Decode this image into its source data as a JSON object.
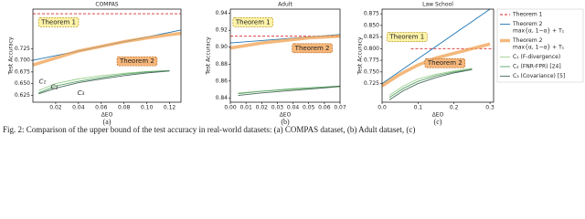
{
  "charts": [
    {
      "type": "line",
      "title": "COMPAS",
      "xlabel": "ΔEO",
      "ylabel": "Test Accuracy",
      "panel": "(a)",
      "xlim": [
        0,
        0.13
      ],
      "ylim": [
        0.61,
        0.81
      ],
      "xticks": [
        0.02,
        0.04,
        0.06,
        0.08,
        {
          "value": 0.1,
          "label": "0.10"
        },
        0.12
      ],
      "yticks": [
        0.625,
        {
          "value": 0.65,
          "label": "0.650"
        },
        0.675,
        {
          "value": 0.7,
          "label": "0.700"
        },
        0.725
      ],
      "series": [
        {
          "style": "dashed",
          "color": "#d62728",
          "x": [
            0,
            0.13
          ],
          "values": [
            0.8,
            0.8
          ]
        },
        {
          "style": "solid",
          "color": "#1f77b4",
          "x": [
            0,
            0.13
          ],
          "values": [
            0.7,
            0.765
          ]
        },
        {
          "style": "band",
          "color": "#f0a050",
          "x": [
            0,
            0.02,
            0.04,
            0.06,
            0.08,
            0.1,
            0.12,
            0.13
          ],
          "values": [
            0.69,
            0.705,
            0.72,
            0.73,
            0.74,
            0.748,
            0.755,
            0.758
          ]
        },
        {
          "style": "solid",
          "color": "#9ccf8c",
          "x": [
            0.005,
            0.02,
            0.04,
            0.06,
            0.08,
            0.1,
            0.12
          ],
          "values": [
            0.635,
            0.65,
            0.66,
            0.667,
            0.672,
            0.676,
            0.678
          ]
        },
        {
          "style": "solid",
          "color": "#5aa46a",
          "x": [
            0.005,
            0.02,
            0.04,
            0.06,
            0.08,
            0.1,
            0.12
          ],
          "values": [
            0.63,
            0.645,
            0.655,
            0.663,
            0.67,
            0.675,
            0.678
          ]
        },
        {
          "style": "solid",
          "color": "#4a6a5a",
          "x": [
            0.005,
            0.02,
            0.04,
            0.06,
            0.08,
            0.1,
            0.12
          ],
          "values": [
            0.628,
            0.64,
            0.652,
            0.66,
            0.667,
            0.673,
            0.677
          ]
        }
      ],
      "annotations": [
        {
          "text": "Theorem 1",
          "style": "box-yellow"
        },
        {
          "text": "Theorem 2",
          "style": "box-orange"
        },
        {
          "text": "C₁",
          "style": "plain"
        },
        {
          "text": "C₂",
          "style": "plain"
        },
        {
          "text": "C₃",
          "style": "plain"
        }
      ]
    },
    {
      "type": "line",
      "title": "Adult",
      "xlabel": "ΔEO",
      "ylabel": "Test Accuracy",
      "panel": "(b)",
      "xlim": [
        0,
        0.07
      ],
      "ylim": [
        0.835,
        0.945
      ],
      "xticks": [
        {
          "value": 0,
          "label": "0.00"
        },
        0.01,
        0.02,
        0.03,
        0.04,
        0.05,
        0.06,
        0.07
      ],
      "yticks": [
        0.84,
        0.86,
        0.88,
        {
          "value": 0.9,
          "label": "0.90"
        },
        0.92,
        0.94
      ],
      "series": [
        {
          "style": "dashed",
          "color": "#d62728",
          "x": [
            0,
            0.07
          ],
          "values": [
            0.913,
            0.913
          ]
        },
        {
          "style": "solid",
          "color": "#1f77b4",
          "x": [
            0,
            0.07
          ],
          "values": [
            0.905,
            0.915
          ]
        },
        {
          "style": "band",
          "color": "#f0a050",
          "x": [
            0,
            0.01,
            0.02,
            0.03,
            0.04,
            0.05,
            0.06,
            0.07
          ],
          "values": [
            0.899,
            0.902,
            0.905,
            0.907,
            0.909,
            0.911,
            0.912,
            0.913
          ]
        },
        {
          "style": "solid",
          "color": "#9ccf8c",
          "x": [
            0.005,
            0.02,
            0.04,
            0.06,
            0.07
          ],
          "values": [
            0.846,
            0.848,
            0.85,
            0.852,
            0.853
          ]
        },
        {
          "style": "solid",
          "color": "#5aa46a",
          "x": [
            0.005,
            0.02,
            0.04,
            0.06,
            0.07
          ],
          "values": [
            0.845,
            0.848,
            0.851,
            0.853,
            0.854
          ]
        },
        {
          "style": "solid",
          "color": "#4a6a5a",
          "x": [
            0.005,
            0.02,
            0.04,
            0.06,
            0.07
          ],
          "values": [
            0.843,
            0.846,
            0.849,
            0.852,
            0.854
          ]
        }
      ],
      "annotations": [
        {
          "text": "Theorem 1",
          "style": "box-yellow"
        },
        {
          "text": "Theorem 2",
          "style": "box-orange"
        }
      ]
    },
    {
      "type": "line",
      "title": "Law School",
      "xlabel": "ΔEO",
      "ylabel": "Test Accuracy",
      "panel": "(c)",
      "xlim": [
        0,
        0.31
      ],
      "ylim": [
        0.685,
        0.885
      ],
      "xticks": [
        {
          "value": 0,
          "label": "0.0"
        },
        0.1,
        0.2,
        0.3
      ],
      "yticks": [
        0.725,
        {
          "value": 0.75,
          "label": "0.750"
        },
        0.775,
        {
          "value": 0.8,
          "label": "0.800"
        },
        0.825,
        {
          "value": 0.85,
          "label": "0.850"
        },
        0.875
      ],
      "series": [
        {
          "style": "dashed",
          "color": "#d62728",
          "x": [
            0.08,
            0.31
          ],
          "values": [
            0.8,
            0.8
          ]
        },
        {
          "style": "solid",
          "color": "#1f77b4",
          "x": [
            0,
            0.3
          ],
          "values": [
            0.725,
            0.885
          ]
        },
        {
          "style": "band",
          "color": "#f0a050",
          "x": [
            0,
            0.05,
            0.1,
            0.15,
            0.2,
            0.25,
            0.3
          ],
          "values": [
            0.72,
            0.745,
            0.765,
            0.78,
            0.79,
            0.8,
            0.81
          ]
        },
        {
          "style": "solid",
          "color": "#9ccf8c",
          "x": [
            0.02,
            0.06,
            0.1,
            0.15,
            0.2,
            0.25
          ],
          "values": [
            0.7,
            0.72,
            0.735,
            0.745,
            0.752,
            0.758
          ]
        },
        {
          "style": "solid",
          "color": "#5aa46a",
          "x": [
            0.02,
            0.06,
            0.1,
            0.15,
            0.2,
            0.25
          ],
          "values": [
            0.695,
            0.715,
            0.73,
            0.742,
            0.75,
            0.756
          ]
        },
        {
          "style": "solid",
          "color": "#4a6a5a",
          "x": [
            0.02,
            0.06,
            0.1,
            0.15,
            0.2,
            0.25
          ],
          "values": [
            0.69,
            0.71,
            0.725,
            0.738,
            0.748,
            0.755
          ]
        }
      ],
      "annotations": [
        {
          "text": "Theorem 1",
          "style": "box-yellow"
        },
        {
          "text": "Theorem 2",
          "style": "box-orange"
        }
      ]
    }
  ],
  "legend": [
    {
      "lines": [
        "Theorem 1"
      ],
      "color": "#d62728",
      "style": "dashed"
    },
    {
      "lines": [
        "Theorem 2",
        "max{α, 1−α} + T₁"
      ],
      "color": "#1f77b4",
      "style": "solid"
    },
    {
      "lines": [
        "Theorem 2",
        "max{α, 1−α} + T₁"
      ],
      "color": "#f0a050",
      "style": "band"
    },
    {
      "lines": [
        "C₁ (F-divergence)"
      ],
      "color": "#9ccf8c",
      "style": "solid"
    },
    {
      "lines": [
        "C₂ (FNR-FPR) [24]"
      ],
      "color": "#5aa46a",
      "style": "solid"
    },
    {
      "lines": [
        "C₃ (Covariance) [5]"
      ],
      "color": "#4a6a5a",
      "style": "solid"
    }
  ],
  "caption": "Fig. 2: Comparison of the upper bound of the test accuracy in real-world datasets: (a) COMPAS dataset, (b) Adult dataset, (c)"
}
